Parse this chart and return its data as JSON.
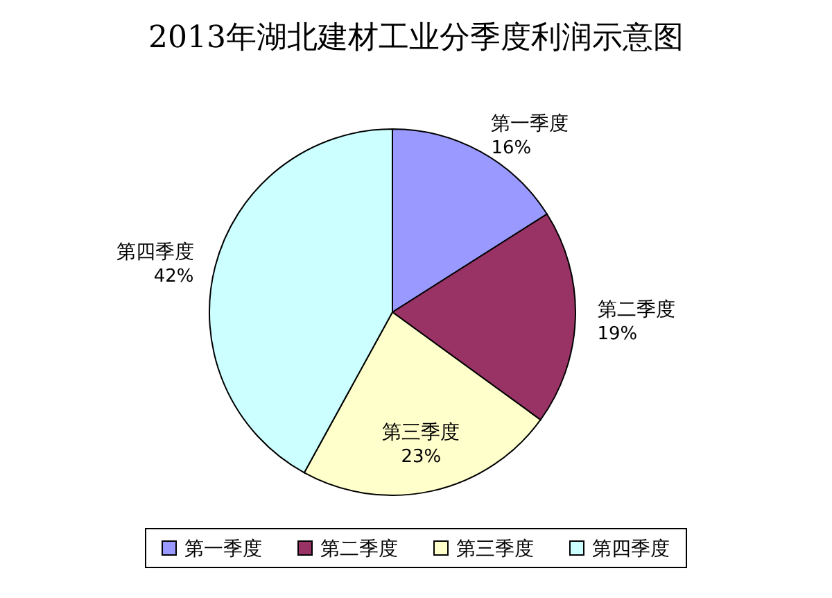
{
  "chart_data": {
    "type": "pie",
    "title": "2013年湖北建材工业分季度利润示意图",
    "categories": [
      "第一季度",
      "第二季度",
      "第三季度",
      "第四季度"
    ],
    "values": [
      16,
      19,
      23,
      42
    ],
    "colors": [
      "#9999ff",
      "#993366",
      "#ffffcc",
      "#ccffff"
    ],
    "value_labels": [
      "16%",
      "19%",
      "23%",
      "42%"
    ],
    "legend": "bottom"
  }
}
